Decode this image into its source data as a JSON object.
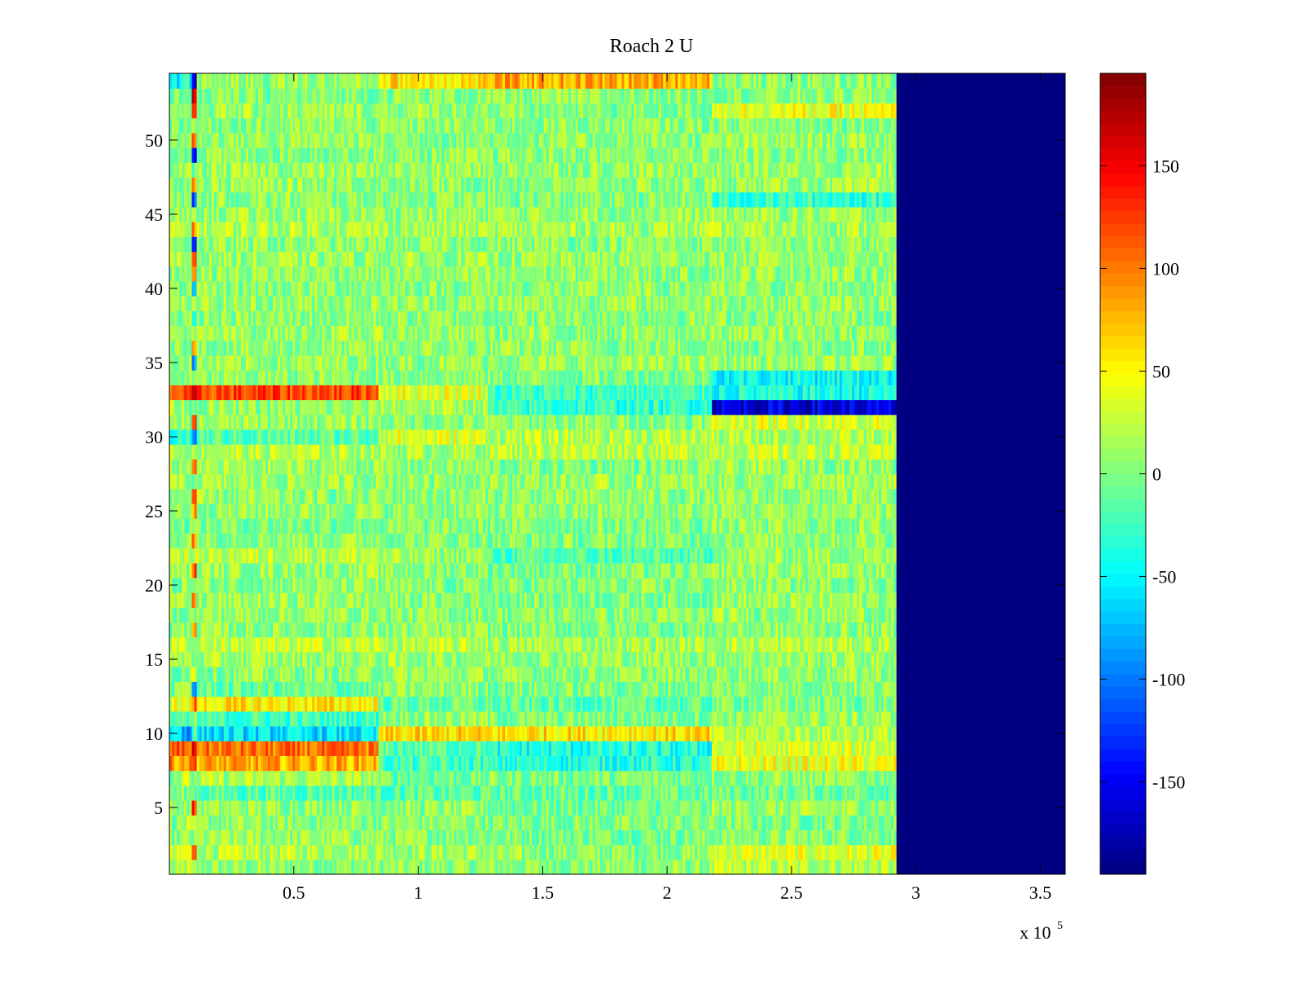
{
  "chart_data": {
    "type": "heatmap",
    "title": "Roach 2 U",
    "xlabel": "",
    "ylabel": "",
    "x_exponent_label": "x 10",
    "x_exponent": "5",
    "xlim": [
      0,
      360000
    ],
    "ylim": [
      0.5,
      54.5
    ],
    "xticks": [
      0.5,
      1,
      1.5,
      2,
      2.5,
      3,
      3.5
    ],
    "xtick_labels": [
      "0.5",
      "1",
      "1.5",
      "2",
      "2.5",
      "3",
      "3.5"
    ],
    "yticks": [
      5,
      10,
      15,
      20,
      25,
      30,
      35,
      40,
      45,
      50
    ],
    "ytick_labels": [
      "5",
      "10",
      "15",
      "20",
      "25",
      "30",
      "35",
      "40",
      "45",
      "50"
    ],
    "colormap": "jet",
    "clim": [
      -195,
      195
    ],
    "colorbar_ticks": [
      150,
      100,
      50,
      0,
      -50,
      -100,
      -150
    ],
    "colorbar_tick_labels": [
      "150",
      "100",
      "50",
      "0",
      "-50",
      "-100",
      "-150"
    ],
    "n_rows": 54,
    "data_end_x": 292000,
    "fill_value_after_data_end": -195,
    "row_segments_x": [
      0,
      5000,
      9000,
      11000,
      84000,
      128000,
      218000,
      292000
    ],
    "row_means": {
      "1": [
        5,
        20,
        0,
        5,
        5,
        5,
        20
      ],
      "2": [
        20,
        40,
        100,
        20,
        15,
        5,
        35
      ],
      "3": [
        0,
        5,
        0,
        10,
        5,
        0,
        5
      ],
      "4": [
        5,
        15,
        0,
        5,
        5,
        0,
        0
      ],
      "5": [
        10,
        10,
        120,
        10,
        5,
        -5,
        10
      ],
      "6": [
        -5,
        0,
        0,
        -15,
        -15,
        -10,
        -5
      ],
      "7": [
        10,
        20,
        0,
        15,
        -5,
        0,
        5
      ],
      "8": [
        90,
        90,
        120,
        80,
        -25,
        -35,
        40
      ],
      "9": [
        110,
        110,
        140,
        100,
        -15,
        -40,
        30
      ],
      "10": [
        -50,
        -80,
        -20,
        -60,
        60,
        60,
        20
      ],
      "11": [
        -20,
        -30,
        0,
        -25,
        10,
        0,
        10
      ],
      "12": [
        40,
        40,
        100,
        55,
        -10,
        -15,
        0
      ],
      "13": [
        -5,
        20,
        -90,
        -10,
        5,
        0,
        5
      ],
      "14": [
        0,
        10,
        40,
        5,
        10,
        5,
        10
      ],
      "15": [
        10,
        15,
        0,
        10,
        10,
        10,
        10
      ],
      "16": [
        25,
        25,
        0,
        25,
        20,
        15,
        20
      ],
      "17": [
        0,
        5,
        100,
        5,
        5,
        0,
        5
      ],
      "18": [
        5,
        5,
        0,
        10,
        5,
        5,
        10
      ],
      "19": [
        10,
        10,
        80,
        10,
        5,
        0,
        10
      ],
      "20": [
        0,
        10,
        0,
        5,
        0,
        0,
        5
      ],
      "21": [
        10,
        15,
        110,
        10,
        5,
        0,
        10
      ],
      "22": [
        30,
        30,
        0,
        25,
        10,
        -20,
        10
      ],
      "23": [
        10,
        15,
        100,
        10,
        5,
        0,
        10
      ],
      "24": [
        0,
        0,
        0,
        0,
        0,
        0,
        5
      ],
      "25": [
        10,
        10,
        80,
        10,
        5,
        5,
        10
      ],
      "26": [
        5,
        5,
        100,
        5,
        5,
        5,
        5
      ],
      "27": [
        10,
        10,
        0,
        10,
        10,
        10,
        10
      ],
      "28": [
        10,
        10,
        120,
        10,
        5,
        0,
        10
      ],
      "29": [
        20,
        20,
        0,
        20,
        15,
        25,
        25
      ],
      "30": [
        -30,
        -30,
        -100,
        -15,
        35,
        20,
        15
      ],
      "31": [
        0,
        10,
        100,
        10,
        5,
        5,
        35
      ],
      "32": [
        20,
        10,
        0,
        5,
        15,
        -30,
        -160
      ],
      "33": [
        110,
        110,
        140,
        120,
        40,
        -25,
        -40
      ],
      "34": [
        0,
        5,
        0,
        5,
        5,
        0,
        -45
      ],
      "35": [
        10,
        10,
        -80,
        10,
        10,
        10,
        10
      ],
      "36": [
        5,
        5,
        100,
        5,
        5,
        5,
        5
      ],
      "37": [
        10,
        10,
        0,
        10,
        10,
        5,
        10
      ],
      "38": [
        5,
        5,
        -60,
        5,
        5,
        5,
        5
      ],
      "39": [
        10,
        10,
        0,
        10,
        10,
        10,
        10
      ],
      "40": [
        0,
        5,
        -80,
        5,
        5,
        5,
        5
      ],
      "41": [
        10,
        10,
        100,
        10,
        5,
        5,
        10
      ],
      "42": [
        10,
        10,
        120,
        10,
        10,
        10,
        10
      ],
      "43": [
        5,
        5,
        -120,
        5,
        5,
        5,
        5
      ],
      "44": [
        20,
        20,
        100,
        20,
        15,
        15,
        15
      ],
      "45": [
        10,
        10,
        0,
        10,
        10,
        10,
        10
      ],
      "46": [
        5,
        5,
        -110,
        5,
        5,
        0,
        -30
      ],
      "47": [
        10,
        10,
        100,
        10,
        5,
        5,
        10
      ],
      "48": [
        10,
        10,
        0,
        10,
        10,
        10,
        10
      ],
      "49": [
        5,
        5,
        -130,
        5,
        5,
        5,
        5
      ],
      "50": [
        10,
        10,
        100,
        10,
        5,
        5,
        10
      ],
      "51": [
        5,
        5,
        0,
        5,
        5,
        5,
        5
      ],
      "52": [
        10,
        10,
        100,
        10,
        10,
        0,
        40
      ],
      "53": [
        0,
        0,
        150,
        0,
        5,
        5,
        5
      ],
      "54": [
        -50,
        -40,
        -150,
        10,
        60,
        80,
        5
      ]
    },
    "noise_amplitude": 30
  }
}
